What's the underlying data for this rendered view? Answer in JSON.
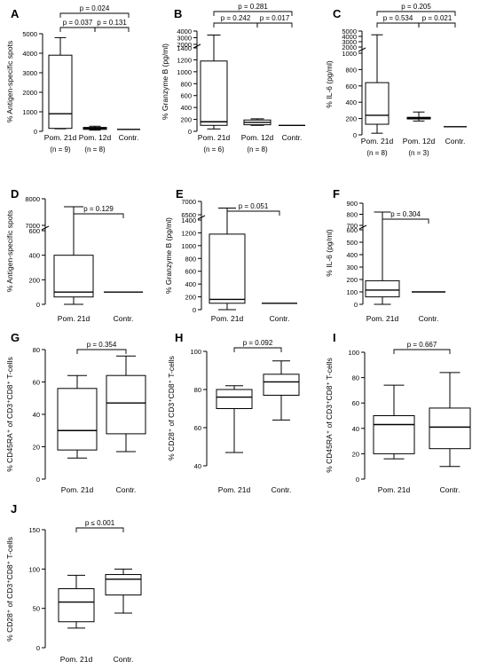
{
  "chart_data": [
    {
      "type": "box",
      "panel": "A",
      "ylabel": "% Antigen-specific spots",
      "scale": "linear",
      "ylim": [
        0,
        5000
      ],
      "yticks": [
        0,
        1000,
        2000,
        3000,
        4000,
        5000
      ],
      "categories": [
        "Pom. 21d",
        "Pom. 12d",
        "Contr."
      ],
      "n_labels": [
        "(n = 9)",
        "(n = 8)",
        ""
      ],
      "boxes": [
        {
          "min": 130,
          "q1": 150,
          "median": 900,
          "q3": 3900,
          "max": 4800
        },
        {
          "min": 60,
          "q1": 100,
          "median": 150,
          "q3": 200,
          "max": 260
        },
        {
          "min": 100,
          "q1": 100,
          "median": 100,
          "q3": 100,
          "max": 100
        }
      ],
      "comparisons": [
        {
          "from": 0,
          "to": 2,
          "label": "p = 0.024"
        },
        {
          "from": 0,
          "to": 1,
          "label": "p = 0.037"
        },
        {
          "from": 1,
          "to": 2,
          "label": "p = 0.131"
        }
      ]
    },
    {
      "type": "box",
      "panel": "B",
      "ylabel": "% Granzyme B (pg/ml)",
      "scale": "broken",
      "ylim": [
        0,
        4000
      ],
      "yticks": [
        0,
        200,
        400,
        600,
        800,
        1000,
        1200,
        1400,
        2000,
        3000,
        4000
      ],
      "categories": [
        "Pom. 21d",
        "Pom. 12d",
        "Contr."
      ],
      "n_labels": [
        "(n = 6)",
        "(n = 8)",
        ""
      ],
      "boxes": [
        {
          "min": 40,
          "q1": 100,
          "median": 160,
          "q3": 1180,
          "max": 3400
        },
        {
          "min": 100,
          "q1": 110,
          "median": 150,
          "q3": 190,
          "max": 210
        },
        {
          "min": 100,
          "q1": 100,
          "median": 100,
          "q3": 100,
          "max": 100
        }
      ],
      "comparisons": [
        {
          "from": 0,
          "to": 2,
          "label": "p = 0.281"
        },
        {
          "from": 0,
          "to": 1,
          "label": "p = 0.242"
        },
        {
          "from": 1,
          "to": 2,
          "label": "p = 0.017"
        }
      ]
    },
    {
      "type": "box",
      "panel": "C",
      "ylabel": "% IL-6 (pg/ml)",
      "scale": "broken",
      "ylim": [
        0,
        5000
      ],
      "yticks": [
        0,
        200,
        400,
        600,
        800,
        1000,
        2000,
        3000,
        4000,
        5000
      ],
      "categories": [
        "Pom. 21d",
        "Pom. 12d",
        "Contr."
      ],
      "n_labels": [
        "(n = 8)",
        "(n = 3)",
        ""
      ],
      "boxes": [
        {
          "min": 20,
          "q1": 130,
          "median": 240,
          "q3": 640,
          "max": 4300
        },
        {
          "min": 170,
          "q1": 195,
          "median": 205,
          "q3": 215,
          "max": 280
        },
        {
          "min": 100,
          "q1": 100,
          "median": 100,
          "q3": 100,
          "max": 100
        }
      ],
      "comparisons": [
        {
          "from": 0,
          "to": 2,
          "label": "p = 0.205"
        },
        {
          "from": 0,
          "to": 1,
          "label": "p = 0.534"
        },
        {
          "from": 1,
          "to": 2,
          "label": "p = 0.021"
        }
      ]
    },
    {
      "type": "box",
      "panel": "D",
      "ylabel": "% Antigen-specific spots",
      "scale": "broken",
      "ylim": [
        0,
        8000
      ],
      "yticks": [
        0,
        200,
        400,
        600,
        7000,
        8000
      ],
      "categories": [
        "Pom. 21d",
        "Contr."
      ],
      "n_labels": [
        "",
        ""
      ],
      "boxes": [
        {
          "min": 0,
          "q1": 60,
          "median": 100,
          "q3": 400,
          "max": 7700
        },
        {
          "min": 100,
          "q1": 100,
          "median": 100,
          "q3": 100,
          "max": 100
        }
      ],
      "comparisons": [
        {
          "from": 0,
          "to": 1,
          "label": "p = 0.129"
        }
      ]
    },
    {
      "type": "box",
      "panel": "E",
      "ylabel": "% Granzyme B (pg/ml)",
      "scale": "broken",
      "ylim": [
        0,
        7000
      ],
      "yticks": [
        0,
        200,
        400,
        600,
        800,
        1000,
        1200,
        1400,
        6500,
        7000
      ],
      "categories": [
        "Pom. 21d",
        "Contr."
      ],
      "n_labels": [
        "",
        ""
      ],
      "boxes": [
        {
          "min": 0,
          "q1": 100,
          "median": 160,
          "q3": 1180,
          "max": 6750
        },
        {
          "min": 100,
          "q1": 100,
          "median": 100,
          "q3": 100,
          "max": 100
        }
      ],
      "comparisons": [
        {
          "from": 0,
          "to": 1,
          "label": "p = 0.051"
        }
      ]
    },
    {
      "type": "box",
      "panel": "F",
      "ylabel": "% IL-6 (pg/ml)",
      "scale": "broken",
      "ylim": [
        0,
        900
      ],
      "yticks": [
        0,
        100,
        200,
        300,
        400,
        500,
        600,
        700,
        800,
        900
      ],
      "categories": [
        "Pom. 21d",
        "Contr."
      ],
      "n_labels": [
        "",
        ""
      ],
      "boxes": [
        {
          "min": 0,
          "q1": 60,
          "median": 115,
          "q3": 190,
          "max": 820
        },
        {
          "min": 100,
          "q1": 100,
          "median": 100,
          "q3": 100,
          "max": 100
        }
      ],
      "comparisons": [
        {
          "from": 0,
          "to": 1,
          "label": "p = 0.304"
        }
      ]
    },
    {
      "type": "box",
      "panel": "G",
      "ylabel": "% CD45RA⁺ of CD3⁺CD8⁺ T-cells",
      "scale": "linear",
      "ylim": [
        0,
        80
      ],
      "yticks": [
        0,
        20,
        40,
        60,
        80
      ],
      "categories": [
        "Pom. 21d",
        "Contr."
      ],
      "n_labels": [
        "",
        ""
      ],
      "boxes": [
        {
          "min": 13,
          "q1": 18,
          "median": 30,
          "q3": 56,
          "max": 64
        },
        {
          "min": 17,
          "q1": 28,
          "median": 47,
          "q3": 64,
          "max": 76
        }
      ],
      "comparisons": [
        {
          "from": 0,
          "to": 1,
          "label": "p = 0.354"
        }
      ]
    },
    {
      "type": "box",
      "panel": "H",
      "ylabel": "% CD28⁺ of CD3⁺CD8⁺ T-cells",
      "scale": "linear",
      "ylim": [
        40,
        100
      ],
      "yticks": [
        40,
        60,
        80,
        100
      ],
      "categories": [
        "Pom. 21d",
        "Contr."
      ],
      "n_labels": [
        "",
        ""
      ],
      "boxes": [
        {
          "min": 47,
          "q1": 70,
          "median": 76,
          "q3": 80,
          "max": 82
        },
        {
          "min": 64,
          "q1": 77,
          "median": 84,
          "q3": 88,
          "max": 95
        }
      ],
      "comparisons": [
        {
          "from": 0,
          "to": 1,
          "label": "p = 0.092"
        }
      ]
    },
    {
      "type": "box",
      "panel": "I",
      "ylabel": "% CD45RA⁺ of CD3⁺CD8⁺ T-cells",
      "scale": "linear",
      "ylim": [
        0,
        100
      ],
      "yticks": [
        0,
        20,
        40,
        60,
        80,
        100
      ],
      "categories": [
        "Pom. 21d",
        "Contr."
      ],
      "n_labels": [
        "",
        ""
      ],
      "boxes": [
        {
          "min": 16,
          "q1": 20,
          "median": 43,
          "q3": 50,
          "max": 74
        },
        {
          "min": 10,
          "q1": 24,
          "median": 41,
          "q3": 56,
          "max": 84
        }
      ],
      "comparisons": [
        {
          "from": 0,
          "to": 1,
          "label": "p = 0.667"
        }
      ]
    },
    {
      "type": "box",
      "panel": "J",
      "ylabel": "% CD28⁺ of CD3⁺CD8⁺ T-cells",
      "scale": "linear",
      "ylim": [
        0,
        150
      ],
      "yticks": [
        0,
        50,
        100,
        150
      ],
      "categories": [
        "Pom. 21d",
        "Contr."
      ],
      "n_labels": [
        "",
        ""
      ],
      "boxes": [
        {
          "min": 25,
          "q1": 33,
          "median": 58,
          "q3": 75,
          "max": 92
        },
        {
          "min": 44,
          "q1": 67,
          "median": 87,
          "q3": 93,
          "max": 100
        }
      ],
      "comparisons": [
        {
          "from": 0,
          "to": 1,
          "label": "p ≤ 0.001"
        }
      ]
    }
  ]
}
